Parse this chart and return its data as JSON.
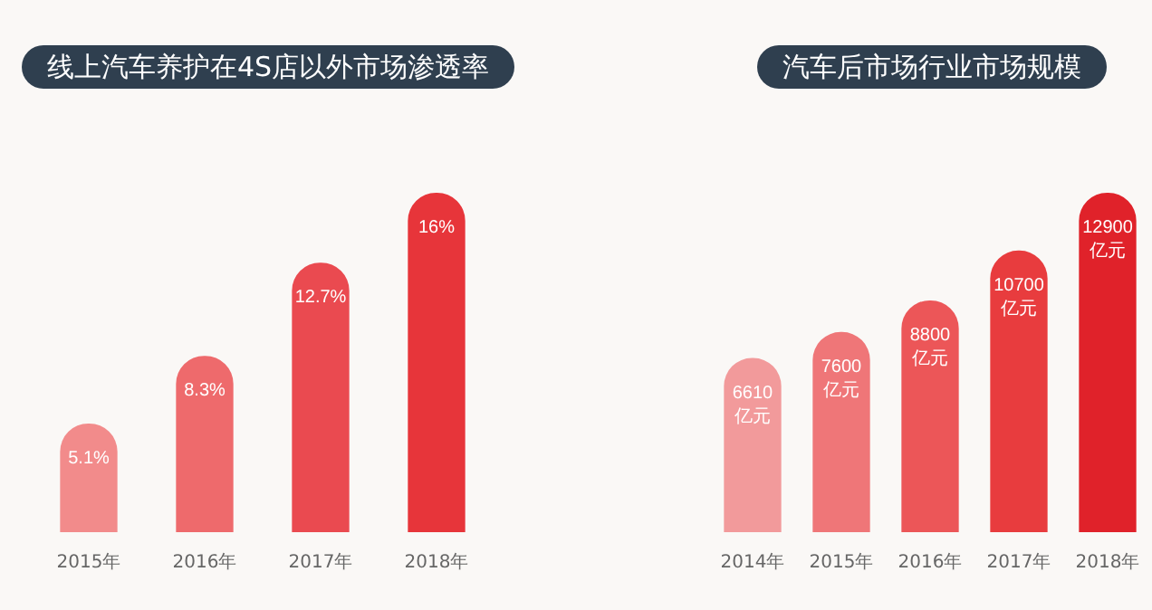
{
  "chart_data": [
    {
      "type": "bar",
      "title": "线上汽车养护在4S店以外市场渗透率",
      "categories": [
        "2015年",
        "2016年",
        "2017年",
        "2018年"
      ],
      "values": [
        5.1,
        8.3,
        12.7,
        16
      ],
      "colors": [
        "#f28b8b",
        "#ee6a6c",
        "#ea4a50",
        "#e7353a"
      ],
      "value_labels": [
        "5.1%",
        "8.3%",
        "12.7%",
        "16%"
      ]
    },
    {
      "type": "bar",
      "title": "汽车后市场行业市场规模",
      "categories": [
        "2014年",
        "2015年",
        "2016年",
        "2017年",
        "2018年"
      ],
      "values": [
        6610,
        7600,
        8800,
        10700,
        12900
      ],
      "colors": [
        "#f29a9b",
        "#ef7678",
        "#ec5658",
        "#e83c3e",
        "#e0222a"
      ],
      "value_labels": [
        "6610 亿元",
        "7600 亿元",
        "8800 亿元",
        "10700 亿元",
        "12900 亿元"
      ]
    }
  ]
}
